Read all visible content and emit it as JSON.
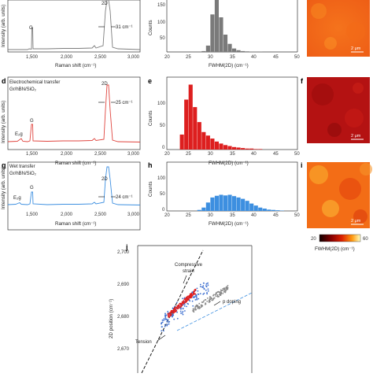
{
  "panels": {
    "a": {
      "peak_labels": [
        "G",
        "2D"
      ],
      "fwhm_annotation": "31 cm⁻¹",
      "xlabel": "Raman shift (cm⁻¹)",
      "ylabel": "Intensity (arb. units)",
      "xticks": [
        "1,500",
        "2,000",
        "2,500",
        "3,000"
      ]
    },
    "b": {
      "xlabel": "FWHM(2D) (cm⁻¹)",
      "ylabel": "Counts",
      "xticks": [
        "20",
        "25",
        "30",
        "35",
        "40",
        "45",
        "50"
      ],
      "yticks": [
        "0",
        "50",
        "100",
        "150"
      ]
    },
    "c": {
      "scalebar": "2 μm"
    },
    "d": {
      "letter": "d",
      "title_line1": "Electrochemical transfer",
      "title_line2": "Gr/hBN/SiO₂",
      "peak_labels": [
        "E₂g",
        "G",
        "2D"
      ],
      "fwhm_annotation": "25 cm⁻¹",
      "xlabel": "Raman shift (cm⁻¹)",
      "ylabel": "Intensity (arb. units)",
      "xticks": [
        "1,500",
        "2,000",
        "2,500",
        "3,000"
      ]
    },
    "e": {
      "letter": "e",
      "xlabel": "FWHM(2D) (cm⁻¹)",
      "ylabel": "Counts",
      "xticks": [
        "20",
        "25",
        "30",
        "35",
        "40",
        "45",
        "50"
      ],
      "yticks": [
        "0",
        "50",
        "100"
      ]
    },
    "f": {
      "letter": "f",
      "scalebar": "2 μm"
    },
    "g": {
      "letter": "g",
      "title_line1": "Wet transfer",
      "title_line2": "Gr/hBN/SiO₂",
      "peak_labels": [
        "E₂g",
        "G",
        "2D"
      ],
      "fwhm_annotation": "24 cm⁻¹",
      "xlabel": "Raman shift (cm⁻¹)",
      "ylabel": "Intensity (arb. units)",
      "xticks": [
        "1,500",
        "2,000",
        "2,500",
        "3,000"
      ]
    },
    "h": {
      "letter": "h",
      "xlabel": "FWHM(2D) (cm⁻¹)",
      "ylabel": "Counts",
      "xticks": [
        "20",
        "25",
        "30",
        "35",
        "40",
        "45",
        "50"
      ],
      "yticks": [
        "0",
        "50",
        "100"
      ]
    },
    "i": {
      "letter": "i",
      "scalebar": "2 μm",
      "colorbar_min": "20",
      "colorbar_max": "60",
      "colorbar_label": "FWHM(2D) (cm⁻¹)"
    },
    "j": {
      "letter": "j",
      "ylabel": "2D position (cm⁻¹)",
      "yticks": [
        "2,670",
        "2,680",
        "2,690",
        "2,700"
      ],
      "annotations": [
        "Compressive",
        "strain",
        "p doping",
        "Tension"
      ]
    }
  },
  "colors": {
    "panel_b": "#7a7a7a",
    "panel_e": "#dd1f1f",
    "panel_h": "#3d8fe0",
    "spectrum_a": "#7d7d7d",
    "spectrum_d": "#e0453f",
    "spectrum_g": "#3d8fe0"
  },
  "chart_data": [
    {
      "panel": "b",
      "type": "bar",
      "xlabel": "FWHM(2D) (cm⁻¹)",
      "ylabel": "Counts",
      "xlim": [
        20,
        50
      ],
      "ylim": [
        0,
        180
      ],
      "bin_width": 1,
      "bin_starts": [
        28,
        29,
        30,
        31,
        32,
        33,
        34,
        35,
        36,
        37,
        38,
        39,
        40,
        41
      ],
      "values": [
        3,
        22,
        130,
        182,
        120,
        60,
        28,
        12,
        6,
        3,
        2,
        1,
        1,
        1
      ]
    },
    {
      "panel": "e",
      "type": "bar",
      "xlabel": "FWHM(2D) (cm⁻¹)",
      "ylabel": "Counts",
      "xlim": [
        20,
        50
      ],
      "ylim": [
        0,
        145
      ],
      "bin_width": 1,
      "bin_starts": [
        23,
        24,
        25,
        26,
        27,
        28,
        29,
        30,
        31,
        32,
        33,
        34,
        35,
        36,
        37,
        38,
        39,
        40,
        41
      ],
      "values": [
        30,
        100,
        130,
        85,
        55,
        35,
        28,
        22,
        16,
        12,
        9,
        7,
        5,
        4,
        3,
        2,
        2,
        1,
        1
      ]
    },
    {
      "panel": "h",
      "type": "bar",
      "xlabel": "FWHM(2D) (cm⁻¹)",
      "ylabel": "Counts",
      "xlim": [
        20,
        50
      ],
      "ylim": [
        0,
        145
      ],
      "bin_width": 1,
      "bin_starts": [
        27,
        28,
        29,
        30,
        31,
        32,
        33,
        34,
        35,
        36,
        37,
        38,
        39,
        40,
        41,
        42,
        43,
        44,
        45,
        46
      ],
      "values": [
        3,
        10,
        25,
        40,
        45,
        48,
        46,
        48,
        44,
        40,
        36,
        30,
        22,
        16,
        10,
        7,
        4,
        3,
        2,
        1
      ]
    }
  ]
}
